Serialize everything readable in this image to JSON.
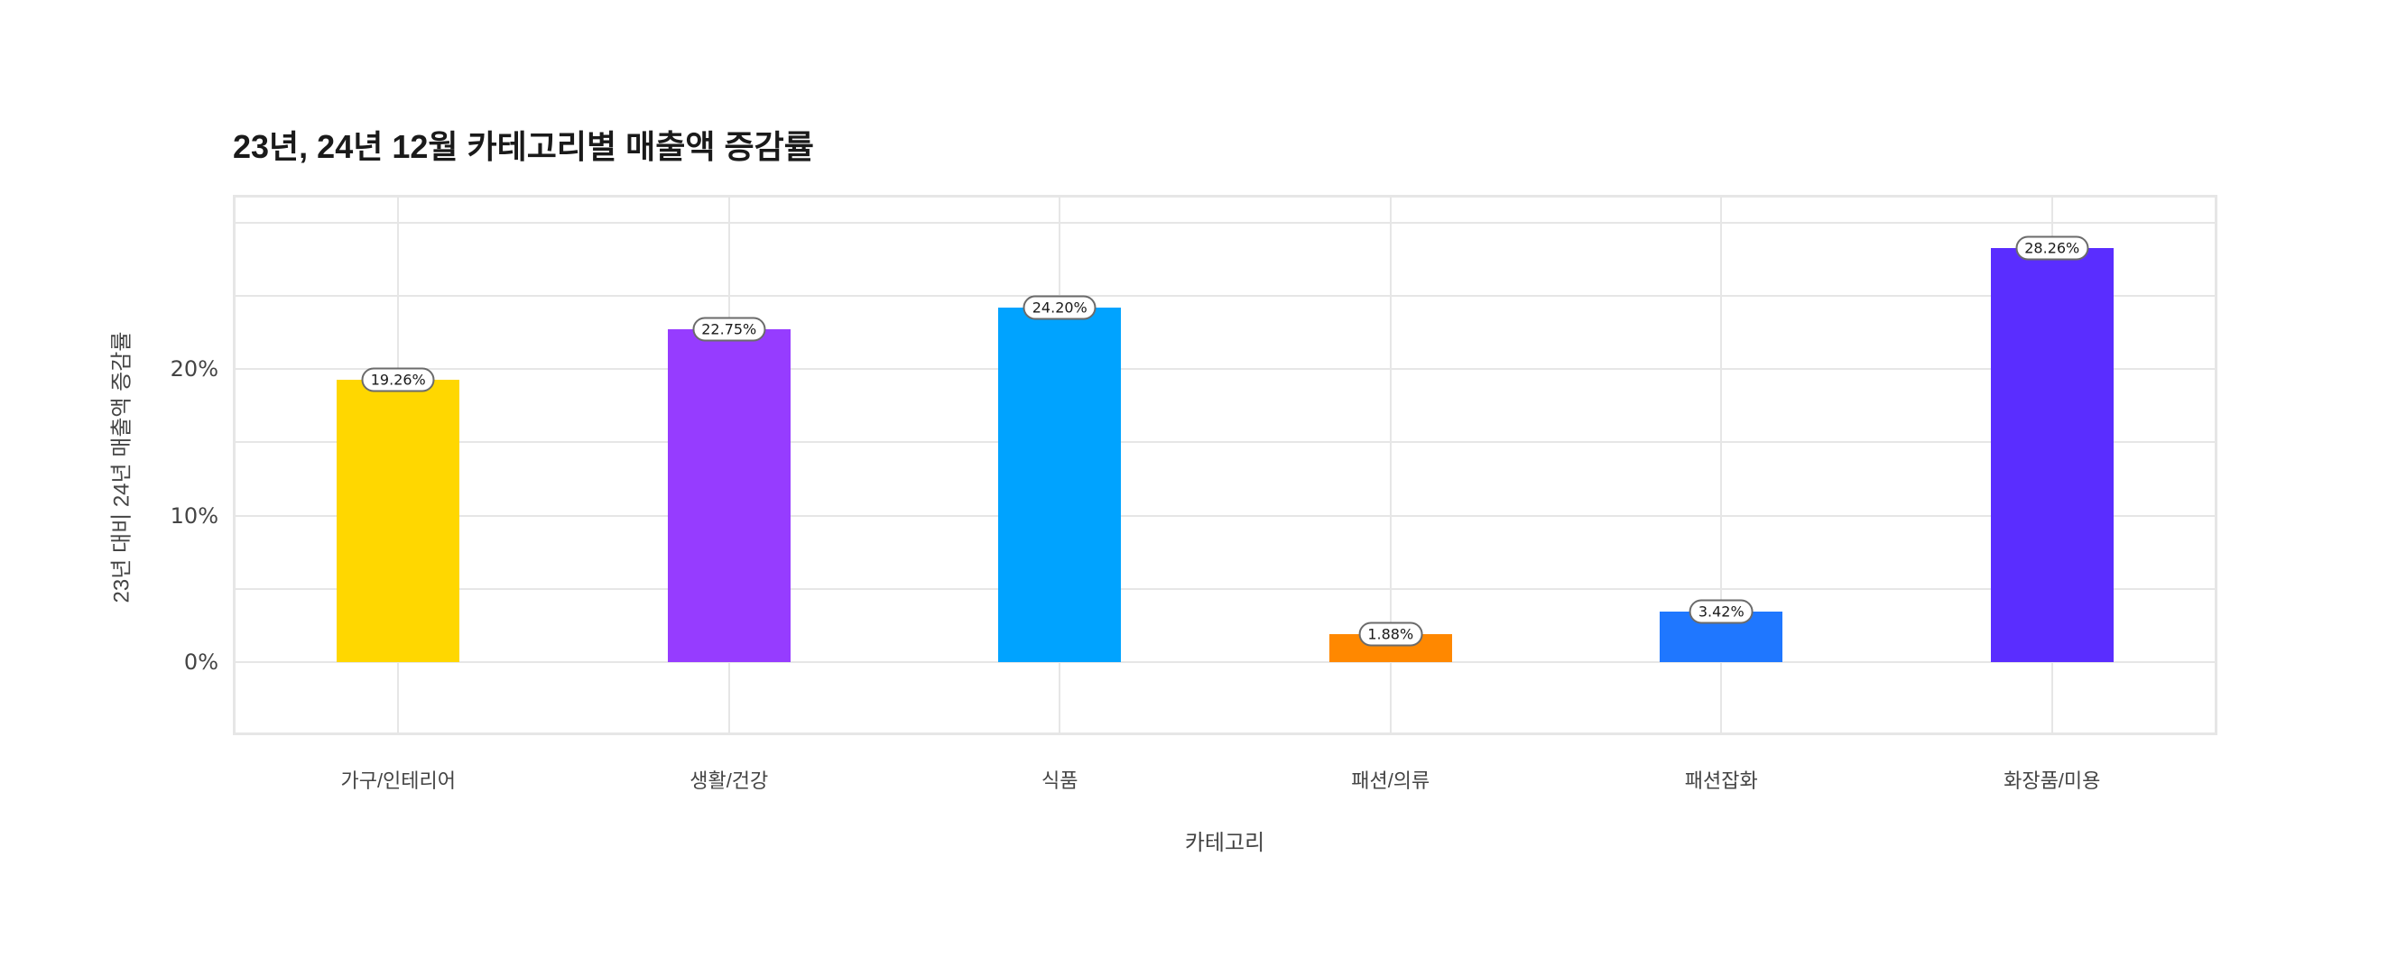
{
  "chart_data": {
    "type": "bar",
    "title": "23년, 24년 12월 카테고리별 매출액 증감률",
    "xlabel": "카테고리",
    "ylabel": "23년 대비 24년 매출액 증감률",
    "categories": [
      "가구/인테리어",
      "생활/건강",
      "식품",
      "패션/의류",
      "패션잡화",
      "화장품/미용"
    ],
    "values": [
      19.26,
      22.75,
      24.2,
      1.88,
      3.42,
      28.26
    ],
    "data_labels": [
      "19.26%",
      "22.75%",
      "24.20%",
      "1.88%",
      "3.42%",
      "28.26%"
    ],
    "colors": [
      "#FFD700",
      "#963CFF",
      "#00A3FF",
      "#FF8800",
      "#1F77FF",
      "#5A2DFF"
    ],
    "yticks": [
      {
        "value": 0,
        "label": "0%"
      },
      {
        "value": 10,
        "label": "10%"
      },
      {
        "value": 20,
        "label": "20%"
      }
    ],
    "ylim": [
      -5,
      31.9
    ],
    "grid": true,
    "legend": "none"
  }
}
